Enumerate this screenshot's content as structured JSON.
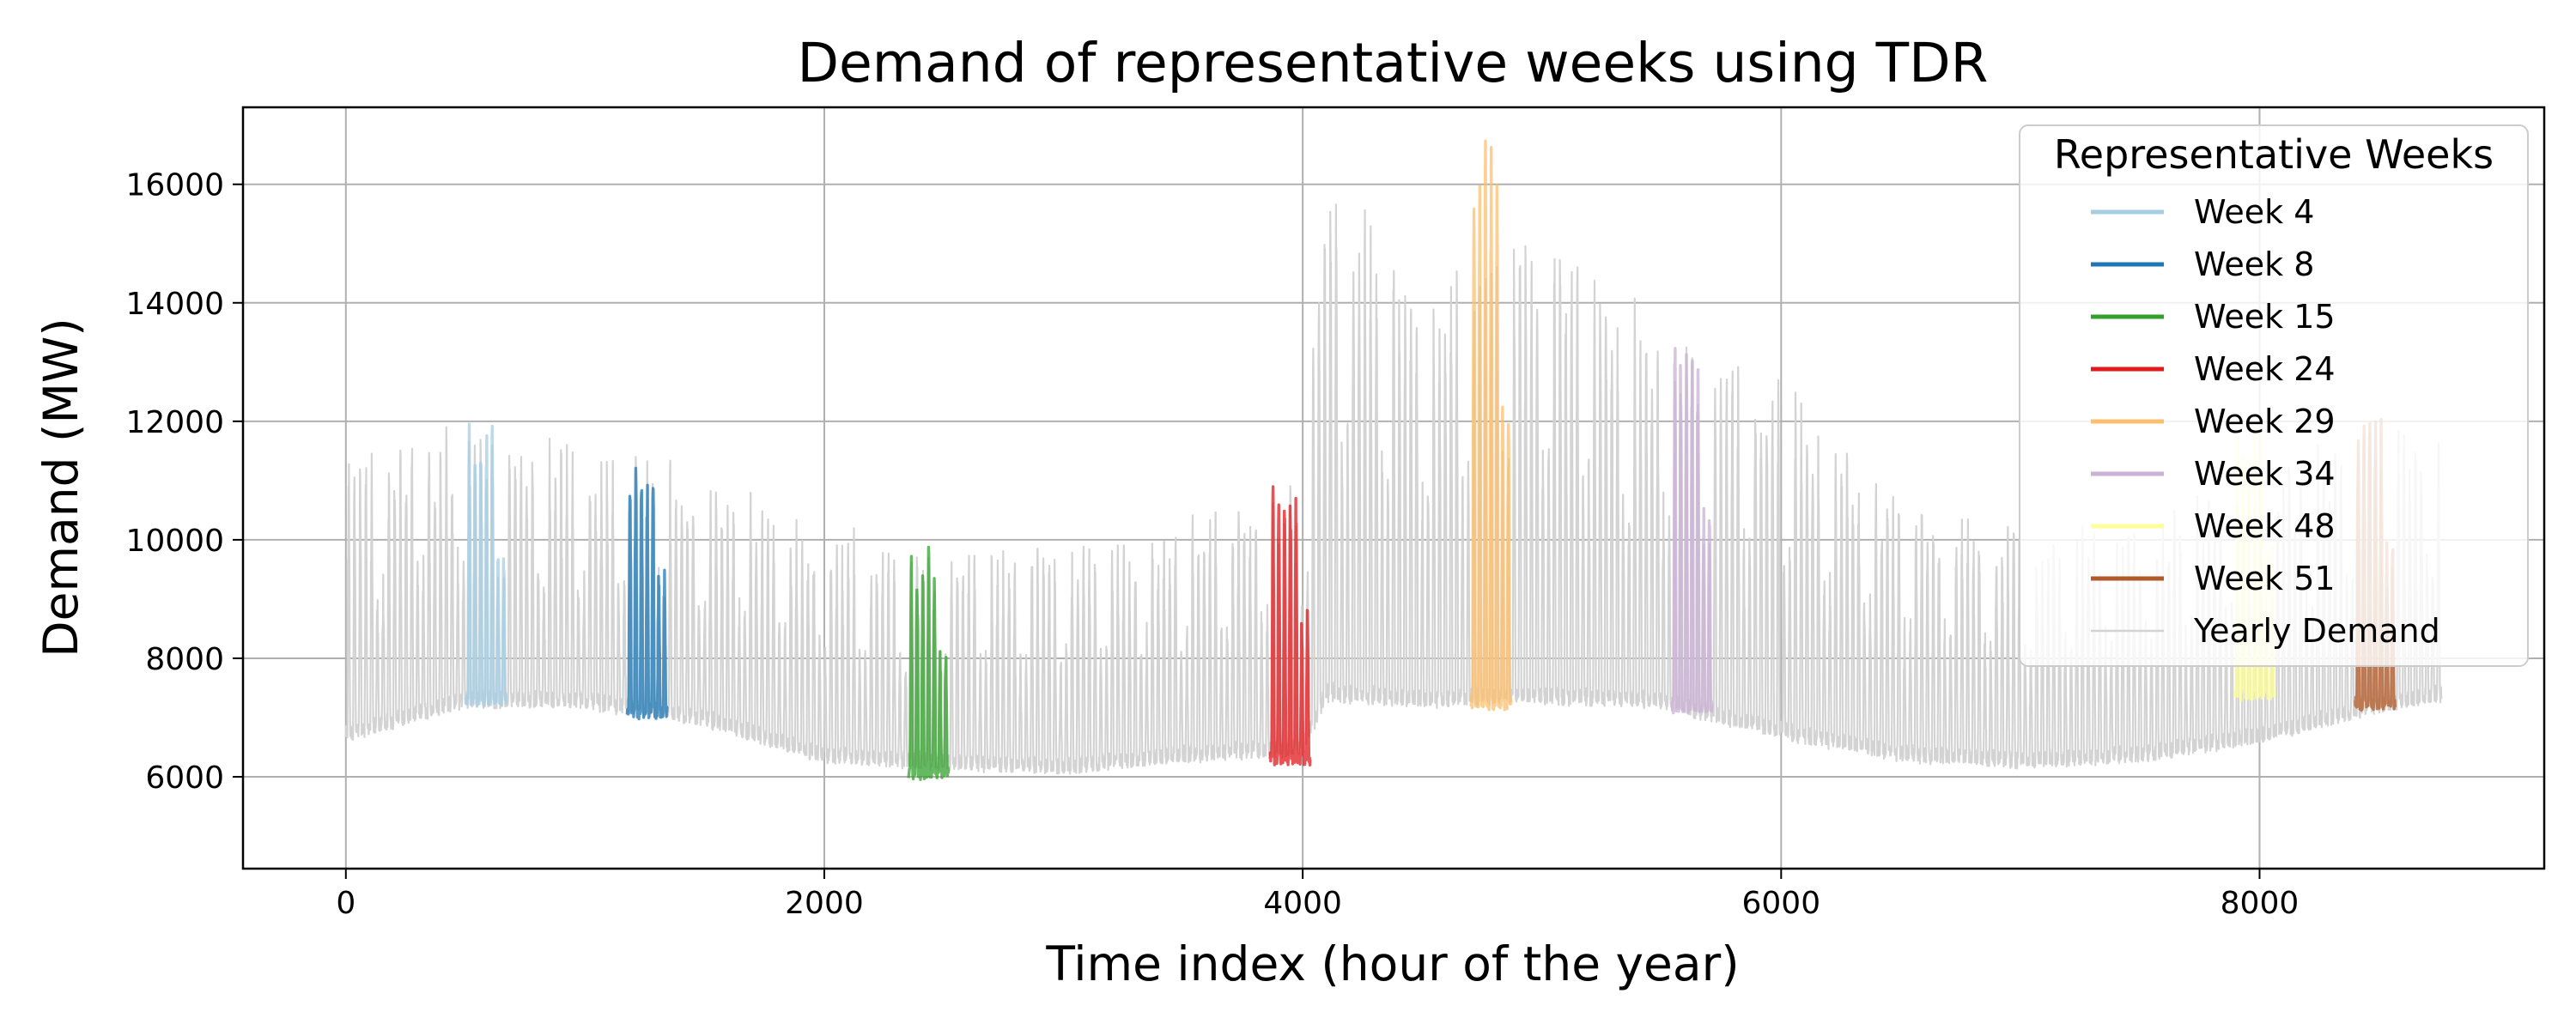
{
  "chart_data": {
    "type": "line",
    "title": "Demand of representative weeks using TDR",
    "xlabel": "Time index (hour of the year)",
    "ylabel": "Demand (MW)",
    "xlim": [
      -430,
      9190
    ],
    "ylim": [
      4450,
      17300
    ],
    "xticks": [
      0,
      2000,
      4000,
      6000,
      8000
    ],
    "yticks": [
      6000,
      8000,
      10000,
      12000,
      14000,
      16000
    ],
    "grid": true,
    "legend": {
      "title": "Representative Weeks",
      "placement": "top-right"
    },
    "background_series": {
      "name": "Yearly Demand",
      "color": "#d3d3d3",
      "seasonal_envelope_hour": [
        0,
        500,
        1000,
        1500,
        2000,
        2500,
        3000,
        3500,
        4000,
        4100,
        4500,
        5000,
        5500,
        6000,
        6500,
        7000,
        7500,
        8000,
        8500,
        8760
      ],
      "envelope_low_MW": [
        6500,
        7100,
        7100,
        6800,
        6200,
        6100,
        6000,
        6200,
        6300,
        7000,
        7000,
        7000,
        7000,
        6500,
        6200,
        6100,
        6200,
        6500,
        7000,
        7200
      ],
      "envelope_high_MW": [
        11500,
        12000,
        11600,
        11200,
        10200,
        9900,
        10000,
        10400,
        11000,
        16400,
        14200,
        15500,
        13500,
        12800,
        10800,
        10300,
        10400,
        11200,
        12000,
        12000
      ]
    },
    "series": [
      {
        "name": "Week 4",
        "color": "#a6cee3",
        "start_hour": 504,
        "min_MW": 7100,
        "max_MW": 12000
      },
      {
        "name": "Week 8",
        "color": "#1f78b4",
        "start_hour": 1176,
        "min_MW": 6900,
        "max_MW": 11400
      },
      {
        "name": "Week 15",
        "color": "#33a02c",
        "start_hour": 2352,
        "min_MW": 5900,
        "max_MW": 9900
      },
      {
        "name": "Week 24",
        "color": "#e31a1c",
        "start_hour": 3864,
        "min_MW": 6100,
        "max_MW": 11000
      },
      {
        "name": "Week 29",
        "color": "#fdbf6f",
        "start_hour": 4704,
        "min_MW": 6800,
        "max_MW": 16700
      },
      {
        "name": "Week 34",
        "color": "#cab2d6",
        "start_hour": 5544,
        "min_MW": 6900,
        "max_MW": 13500
      },
      {
        "name": "Week 48",
        "color": "#ffff99",
        "start_hour": 7896,
        "min_MW": 7200,
        "max_MW": 12000
      },
      {
        "name": "Week 51",
        "color": "#b15928",
        "start_hour": 8400,
        "min_MW": 7000,
        "max_MW": 12300
      }
    ]
  }
}
